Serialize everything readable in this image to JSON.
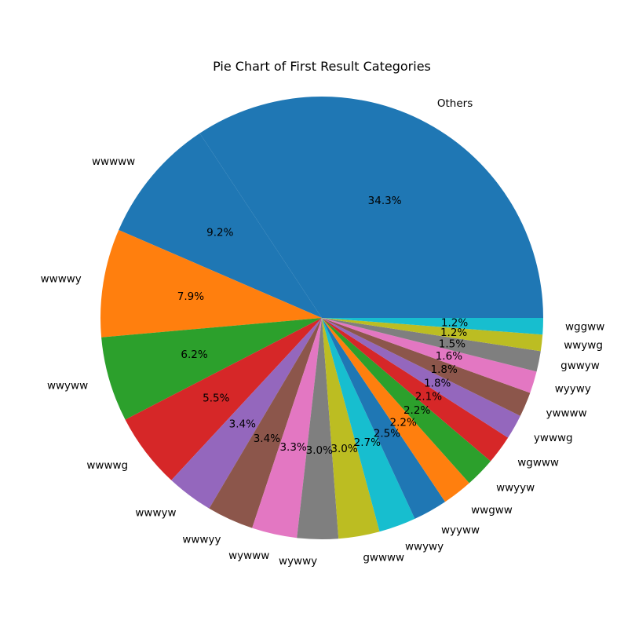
{
  "chart_data": {
    "type": "pie",
    "title": "Pie Chart of First Result Categories",
    "start_angle_deg": 0,
    "direction": "counterclockwise",
    "legend": "none",
    "slices": [
      {
        "label": "Others",
        "value": 34.3,
        "pct_label": "34.3%",
        "color": "#1f77b4"
      },
      {
        "label": "wwwww",
        "value": 9.2,
        "pct_label": "9.2%",
        "color": "#1f77b4"
      },
      {
        "label": "wwwwy",
        "value": 7.9,
        "pct_label": "7.9%",
        "color": "#ff7f0e"
      },
      {
        "label": "wwyww",
        "value": 6.2,
        "pct_label": "6.2%",
        "color": "#2ca02c"
      },
      {
        "label": "wwwwg",
        "value": 5.5,
        "pct_label": "5.5%",
        "color": "#d62728"
      },
      {
        "label": "wwwyw",
        "value": 3.4,
        "pct_label": "3.4%",
        "color": "#9467bd"
      },
      {
        "label": "wwwyy",
        "value": 3.4,
        "pct_label": "3.4%",
        "color": "#8c564b"
      },
      {
        "label": "wywww",
        "value": 3.3,
        "pct_label": "3.3%",
        "color": "#e377c2"
      },
      {
        "label": "wywwy",
        "value": 3.0,
        "pct_label": "3.0%",
        "color": "#7f7f7f"
      },
      {
        "label": "gwwww",
        "value": 3.0,
        "pct_label": "3.0%",
        "color": "#bcbd22"
      },
      {
        "label": "wwywy",
        "value": 2.7,
        "pct_label": "2.7%",
        "color": "#17becf"
      },
      {
        "label": "wyyww",
        "value": 2.5,
        "pct_label": "2.5%",
        "color": "#1f77b4"
      },
      {
        "label": "wwgww",
        "value": 2.2,
        "pct_label": "2.2%",
        "color": "#ff7f0e"
      },
      {
        "label": "wwyyw",
        "value": 2.2,
        "pct_label": "2.2%",
        "color": "#2ca02c"
      },
      {
        "label": "wgwww",
        "value": 2.1,
        "pct_label": "2.1%",
        "color": "#d62728"
      },
      {
        "label": "ywwwg",
        "value": 1.8,
        "pct_label": "1.8%",
        "color": "#9467bd"
      },
      {
        "label": "ywwww",
        "value": 1.8,
        "pct_label": "1.8%",
        "color": "#8c564b"
      },
      {
        "label": "wyywy",
        "value": 1.6,
        "pct_label": "1.6%",
        "color": "#e377c2"
      },
      {
        "label": "gwwyw",
        "value": 1.5,
        "pct_label": "1.5%",
        "color": "#7f7f7f"
      },
      {
        "label": "wwywg",
        "value": 1.2,
        "pct_label": "1.2%",
        "color": "#bcbd22"
      },
      {
        "label": "wggww",
        "value": 1.2,
        "pct_label": "1.2%",
        "color": "#17becf"
      }
    ]
  }
}
